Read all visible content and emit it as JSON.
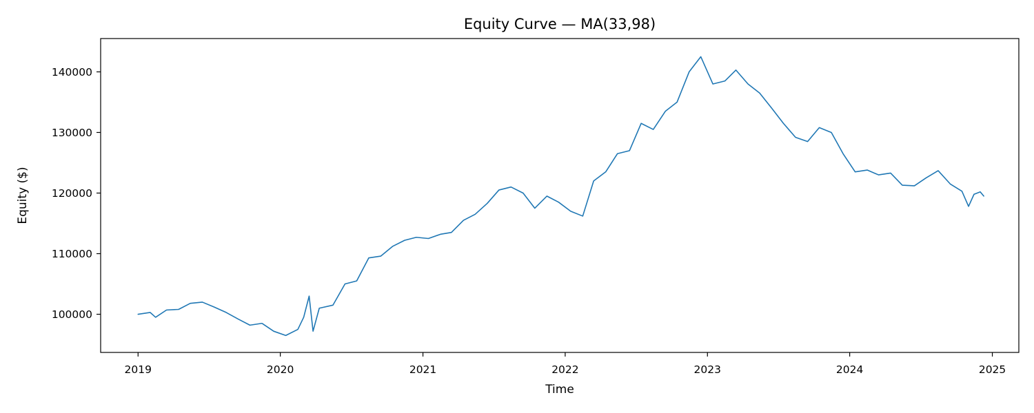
{
  "chart_data": {
    "type": "line",
    "title": "Equity Curve — MA(33,98)",
    "xlabel": "Time",
    "ylabel": "Equity ($)",
    "xlim": [
      "2018-09-27",
      "2025-03-10"
    ],
    "ylim": [
      93700,
      145500
    ],
    "grid": false,
    "legend": "none",
    "x_ticks": [
      {
        "date": "2019-01-01",
        "label": "2019"
      },
      {
        "date": "2020-01-01",
        "label": "2020"
      },
      {
        "date": "2021-01-01",
        "label": "2021"
      },
      {
        "date": "2022-01-01",
        "label": "2022"
      },
      {
        "date": "2023-01-01",
        "label": "2023"
      },
      {
        "date": "2024-01-01",
        "label": "2024"
      },
      {
        "date": "2025-01-01",
        "label": "2025"
      }
    ],
    "y_ticks": [
      {
        "value": 100000,
        "label": "100000"
      },
      {
        "value": 110000,
        "label": "110000"
      },
      {
        "value": 120000,
        "label": "120000"
      },
      {
        "value": 130000,
        "label": "130000"
      },
      {
        "value": 140000,
        "label": "140000"
      }
    ],
    "series": [
      {
        "color": "#1f77b4",
        "points": [
          [
            "2019-01-01",
            100000
          ],
          [
            "2019-02-01",
            100300
          ],
          [
            "2019-02-15",
            99500
          ],
          [
            "2019-03-15",
            100700
          ],
          [
            "2019-04-15",
            100800
          ],
          [
            "2019-05-15",
            101800
          ],
          [
            "2019-06-15",
            102000
          ],
          [
            "2019-07-15",
            101200
          ],
          [
            "2019-08-15",
            100300
          ],
          [
            "2019-09-15",
            99200
          ],
          [
            "2019-10-15",
            98200
          ],
          [
            "2019-11-15",
            98500
          ],
          [
            "2019-12-15",
            97200
          ],
          [
            "2020-01-15",
            96500
          ],
          [
            "2020-02-15",
            97500
          ],
          [
            "2020-03-01",
            99500
          ],
          [
            "2020-03-15",
            103000
          ],
          [
            "2020-03-25",
            97200
          ],
          [
            "2020-04-10",
            101000
          ],
          [
            "2020-05-15",
            101500
          ],
          [
            "2020-06-15",
            105000
          ],
          [
            "2020-07-15",
            105500
          ],
          [
            "2020-08-15",
            109300
          ],
          [
            "2020-09-15",
            109600
          ],
          [
            "2020-10-15",
            111200
          ],
          [
            "2020-11-15",
            112200
          ],
          [
            "2020-12-15",
            112700
          ],
          [
            "2021-01-15",
            112500
          ],
          [
            "2021-02-15",
            113200
          ],
          [
            "2021-03-15",
            113500
          ],
          [
            "2021-04-15",
            115500
          ],
          [
            "2021-05-15",
            116500
          ],
          [
            "2021-06-15",
            118300
          ],
          [
            "2021-07-15",
            120500
          ],
          [
            "2021-08-15",
            121000
          ],
          [
            "2021-09-15",
            120000
          ],
          [
            "2021-10-15",
            117500
          ],
          [
            "2021-11-15",
            119500
          ],
          [
            "2021-12-15",
            118500
          ],
          [
            "2022-01-15",
            117000
          ],
          [
            "2022-02-15",
            116200
          ],
          [
            "2022-03-15",
            122000
          ],
          [
            "2022-04-15",
            123500
          ],
          [
            "2022-05-15",
            126500
          ],
          [
            "2022-06-15",
            127000
          ],
          [
            "2022-07-15",
            131500
          ],
          [
            "2022-08-15",
            130500
          ],
          [
            "2022-09-15",
            133500
          ],
          [
            "2022-10-15",
            135000
          ],
          [
            "2022-11-15",
            140000
          ],
          [
            "2022-12-15",
            142500
          ],
          [
            "2023-01-15",
            138000
          ],
          [
            "2023-02-15",
            138500
          ],
          [
            "2023-03-15",
            140300
          ],
          [
            "2023-04-15",
            138000
          ],
          [
            "2023-05-15",
            136500
          ],
          [
            "2023-06-15",
            134000
          ],
          [
            "2023-07-15",
            131500
          ],
          [
            "2023-08-15",
            129200
          ],
          [
            "2023-09-15",
            128500
          ],
          [
            "2023-10-15",
            130800
          ],
          [
            "2023-11-15",
            130000
          ],
          [
            "2023-12-15",
            126500
          ],
          [
            "2024-01-15",
            123500
          ],
          [
            "2024-02-15",
            123800
          ],
          [
            "2024-03-15",
            123000
          ],
          [
            "2024-04-15",
            123300
          ],
          [
            "2024-05-15",
            121300
          ],
          [
            "2024-06-15",
            121200
          ],
          [
            "2024-07-15",
            122500
          ],
          [
            "2024-08-15",
            123700
          ],
          [
            "2024-09-15",
            121500
          ],
          [
            "2024-10-15",
            120300
          ],
          [
            "2024-11-01",
            117800
          ],
          [
            "2024-11-15",
            119800
          ],
          [
            "2024-12-01",
            120200
          ],
          [
            "2024-12-10",
            119500
          ]
        ]
      }
    ]
  }
}
